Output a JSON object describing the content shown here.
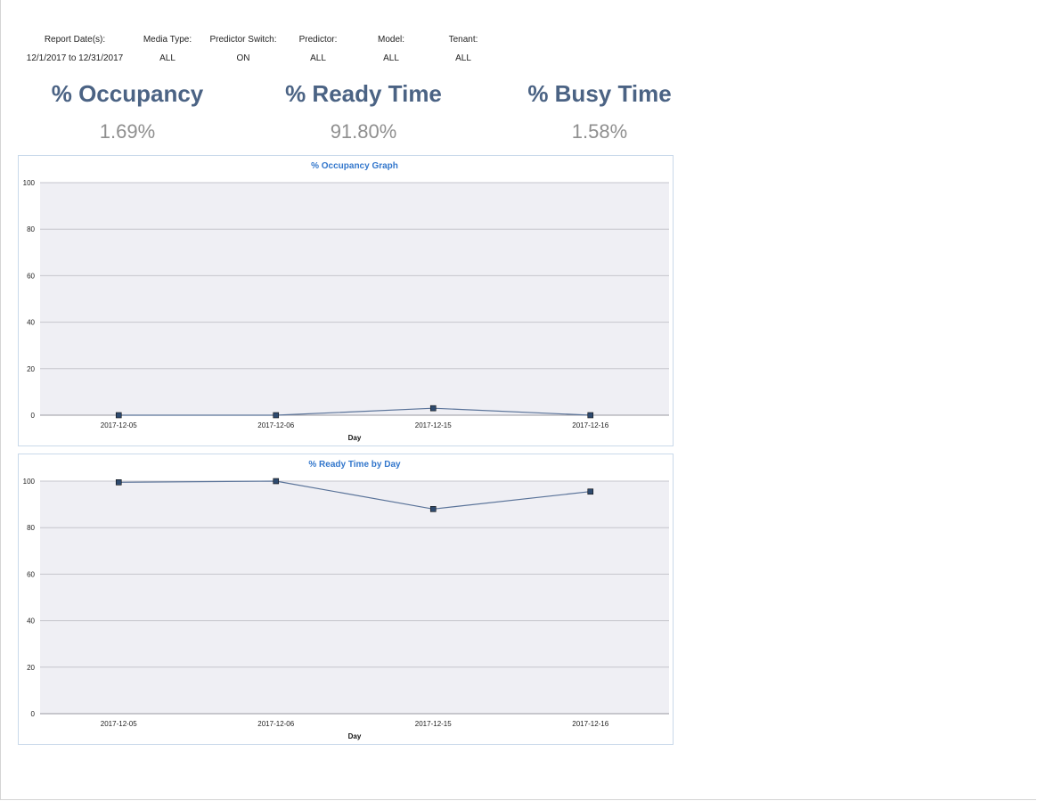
{
  "filters": [
    {
      "label": "Report Date(s):",
      "value": "12/1/2017  to  12/31/2017"
    },
    {
      "label": "Media Type:",
      "value": "ALL"
    },
    {
      "label": "Predictor Switch:",
      "value": "ON"
    },
    {
      "label": "Predictor:",
      "value": "ALL"
    },
    {
      "label": "Model:",
      "value": "ALL"
    },
    {
      "label": "Tenant:",
      "value": "ALL"
    }
  ],
  "kpis": [
    {
      "title": "% Occupancy",
      "value": "1.69%"
    },
    {
      "title": "% Ready Time",
      "value": "91.80%"
    },
    {
      "title": "% Busy Time",
      "value": "1.58%"
    }
  ],
  "colors": {
    "kpi_title": "#4b6384",
    "kpi_value": "#8f8f8f",
    "chart_title": "#3377cc",
    "plot_bg": "#efeff4",
    "line": "#5a7399",
    "marker_fill": "#2e4a6e"
  },
  "chart_data": [
    {
      "type": "line",
      "title": "% Occupancy Graph",
      "xlabel": "Day",
      "ylabel": "",
      "categories": [
        "2017-12-05",
        "2017-12-06",
        "2017-12-15",
        "2017-12-16"
      ],
      "values": [
        0,
        0,
        3,
        0
      ],
      "ylim": [
        0,
        100
      ],
      "yticks": [
        0,
        20,
        40,
        60,
        80,
        100
      ],
      "grid": true,
      "legend": "none"
    },
    {
      "type": "line",
      "title": "% Ready Time by Day",
      "xlabel": "Day",
      "ylabel": "",
      "categories": [
        "2017-12-05",
        "2017-12-06",
        "2017-12-15",
        "2017-12-16"
      ],
      "values": [
        99.5,
        100,
        88,
        95.5
      ],
      "ylim": [
        0,
        100
      ],
      "yticks": [
        0,
        20,
        40,
        60,
        80,
        100
      ],
      "grid": true,
      "legend": "none"
    }
  ]
}
